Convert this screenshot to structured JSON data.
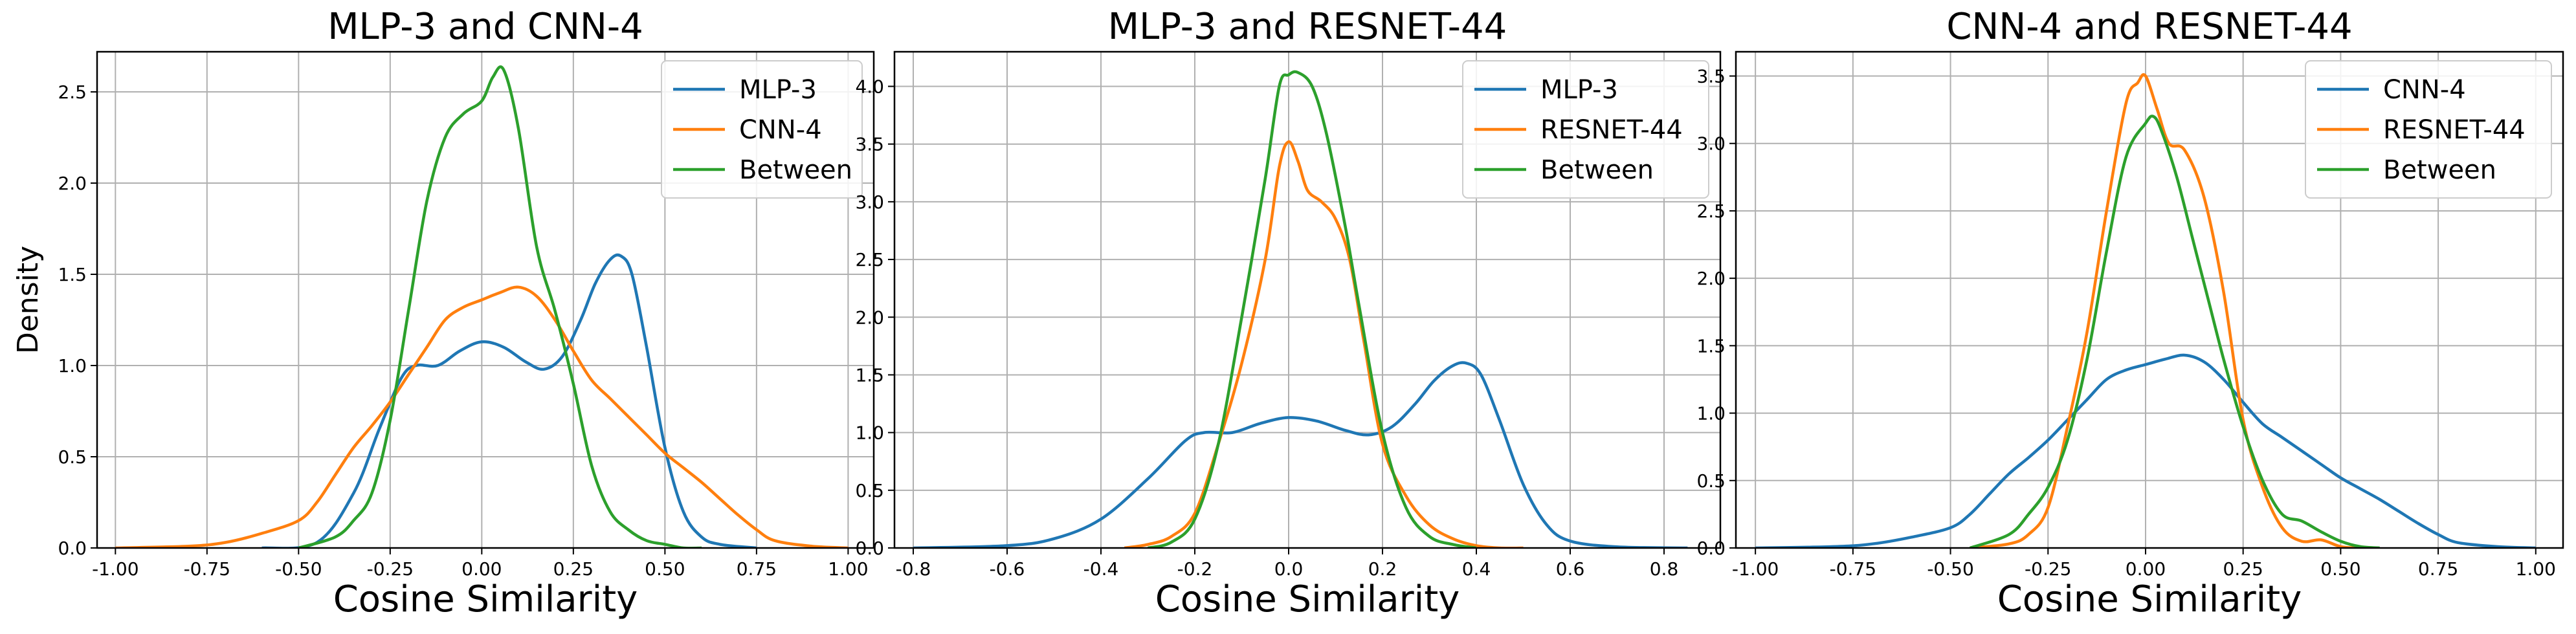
{
  "chart_data": [
    {
      "type": "line",
      "title": "MLP-3 and CNN-4",
      "xlabel": "Cosine Similarity",
      "ylabel": "Density",
      "xlim": [
        -1.05,
        1.07
      ],
      "ylim": [
        0,
        2.72
      ],
      "xticks": [
        "-1.00",
        "-0.75",
        "-0.50",
        "-0.25",
        "0.00",
        "0.25",
        "0.50",
        "0.75",
        "1.00"
      ],
      "yticks": [
        "0.0",
        "0.5",
        "1.0",
        "1.5",
        "2.0",
        "2.5"
      ],
      "grid": true,
      "legend": "top-right",
      "series": [
        {
          "name": "MLP-3",
          "color": "#1f77b4",
          "x": [
            -0.6,
            -0.45,
            -0.35,
            -0.28,
            -0.22,
            -0.18,
            -0.12,
            -0.06,
            0.0,
            0.06,
            0.12,
            0.17,
            0.22,
            0.27,
            0.31,
            0.35,
            0.38,
            0.41,
            0.45,
            0.5,
            0.55,
            0.6,
            0.65,
            0.75
          ],
          "y": [
            0.0,
            0.03,
            0.3,
            0.65,
            0.93,
            1.0,
            1.0,
            1.08,
            1.13,
            1.1,
            1.02,
            0.98,
            1.05,
            1.25,
            1.45,
            1.58,
            1.6,
            1.5,
            1.1,
            0.55,
            0.2,
            0.06,
            0.02,
            0.0
          ]
        },
        {
          "name": "CNN-4",
          "color": "#ff7f0e",
          "x": [
            -1.0,
            -0.8,
            -0.7,
            -0.6,
            -0.5,
            -0.45,
            -0.4,
            -0.35,
            -0.3,
            -0.25,
            -0.2,
            -0.15,
            -0.1,
            -0.05,
            0.0,
            0.05,
            0.1,
            0.15,
            0.2,
            0.25,
            0.3,
            0.35,
            0.4,
            0.45,
            0.5,
            0.55,
            0.6,
            0.65,
            0.7,
            0.75,
            0.8,
            0.9,
            1.0
          ],
          "y": [
            0.0,
            0.01,
            0.03,
            0.08,
            0.15,
            0.25,
            0.4,
            0.55,
            0.67,
            0.8,
            0.95,
            1.1,
            1.25,
            1.32,
            1.36,
            1.4,
            1.43,
            1.38,
            1.25,
            1.08,
            0.92,
            0.82,
            0.72,
            0.62,
            0.52,
            0.44,
            0.36,
            0.27,
            0.18,
            0.1,
            0.04,
            0.01,
            0.0
          ]
        },
        {
          "name": "Between",
          "color": "#2ca02c",
          "x": [
            -0.5,
            -0.4,
            -0.35,
            -0.3,
            -0.25,
            -0.2,
            -0.15,
            -0.1,
            -0.05,
            0.0,
            0.03,
            0.06,
            0.1,
            0.15,
            0.2,
            0.25,
            0.3,
            0.35,
            0.4,
            0.45,
            0.5,
            0.55,
            0.6
          ],
          "y": [
            0.0,
            0.06,
            0.15,
            0.3,
            0.7,
            1.3,
            1.9,
            2.25,
            2.38,
            2.45,
            2.58,
            2.62,
            2.3,
            1.65,
            1.3,
            0.9,
            0.45,
            0.2,
            0.1,
            0.04,
            0.02,
            0.0,
            0.0
          ]
        }
      ]
    },
    {
      "type": "line",
      "title": "MLP-3 and RESNET-44",
      "xlabel": "Cosine Similarity",
      "ylabel": "",
      "xlim": [
        -0.84,
        0.92
      ],
      "ylim": [
        0,
        4.3
      ],
      "xticks": [
        "-0.8",
        "-0.6",
        "-0.4",
        "-0.2",
        "0.0",
        "0.2",
        "0.4",
        "0.6",
        "0.8"
      ],
      "yticks": [
        "0.0",
        "0.5",
        "1.0",
        "1.5",
        "2.0",
        "2.5",
        "3.0",
        "3.5",
        "4.0"
      ],
      "grid": true,
      "legend": "top-right",
      "series": [
        {
          "name": "MLP-3",
          "color": "#1f77b4",
          "x": [
            -0.8,
            -0.6,
            -0.5,
            -0.4,
            -0.3,
            -0.22,
            -0.18,
            -0.12,
            -0.06,
            0.0,
            0.06,
            0.12,
            0.17,
            0.22,
            0.27,
            0.31,
            0.35,
            0.38,
            0.41,
            0.45,
            0.5,
            0.55,
            0.6,
            0.7,
            0.85
          ],
          "y": [
            0.0,
            0.02,
            0.08,
            0.25,
            0.6,
            0.93,
            1.0,
            1.0,
            1.08,
            1.13,
            1.1,
            1.02,
            0.98,
            1.05,
            1.25,
            1.45,
            1.58,
            1.6,
            1.5,
            1.1,
            0.55,
            0.2,
            0.06,
            0.01,
            0.0
          ]
        },
        {
          "name": "RESNET-44",
          "color": "#ff7f0e",
          "x": [
            -0.35,
            -0.3,
            -0.25,
            -0.2,
            -0.15,
            -0.1,
            -0.05,
            -0.02,
            0.0,
            0.02,
            0.04,
            0.07,
            0.1,
            0.13,
            0.16,
            0.2,
            0.25,
            0.3,
            0.35,
            0.4,
            0.45,
            0.5
          ],
          "y": [
            0.0,
            0.03,
            0.1,
            0.3,
            0.9,
            1.6,
            2.5,
            3.3,
            3.52,
            3.35,
            3.1,
            3.0,
            2.85,
            2.5,
            1.8,
            0.9,
            0.45,
            0.2,
            0.08,
            0.02,
            0.0,
            0.0
          ]
        },
        {
          "name": "Between",
          "color": "#2ca02c",
          "x": [
            -0.3,
            -0.25,
            -0.2,
            -0.15,
            -0.1,
            -0.05,
            -0.02,
            0.0,
            0.02,
            0.05,
            0.08,
            0.12,
            0.15,
            0.2,
            0.25,
            0.3,
            0.35,
            0.4
          ],
          "y": [
            0.0,
            0.05,
            0.25,
            0.9,
            2.0,
            3.2,
            4.0,
            4.1,
            4.12,
            4.0,
            3.6,
            2.8,
            2.1,
            1.0,
            0.35,
            0.1,
            0.03,
            0.0
          ]
        }
      ]
    },
    {
      "type": "line",
      "title": "CNN-4 and RESNET-44",
      "xlabel": "Cosine Similarity",
      "ylabel": "",
      "xlim": [
        -1.05,
        1.07
      ],
      "ylim": [
        0,
        3.68
      ],
      "xticks": [
        "-1.00",
        "-0.75",
        "-0.50",
        "-0.25",
        "0.00",
        "0.25",
        "0.50",
        "0.75",
        "1.00"
      ],
      "yticks": [
        "0.0",
        "0.5",
        "1.0",
        "1.5",
        "2.0",
        "2.5",
        "3.0",
        "3.5"
      ],
      "grid": true,
      "legend": "top-right",
      "series": [
        {
          "name": "CNN-4",
          "color": "#1f77b4",
          "x": [
            -1.0,
            -0.8,
            -0.7,
            -0.6,
            -0.5,
            -0.45,
            -0.4,
            -0.35,
            -0.3,
            -0.25,
            -0.2,
            -0.15,
            -0.1,
            -0.05,
            0.0,
            0.05,
            0.1,
            0.15,
            0.2,
            0.25,
            0.3,
            0.35,
            0.4,
            0.45,
            0.5,
            0.55,
            0.6,
            0.65,
            0.7,
            0.75,
            0.8,
            0.9,
            1.0
          ],
          "y": [
            0.0,
            0.01,
            0.03,
            0.08,
            0.15,
            0.25,
            0.4,
            0.55,
            0.67,
            0.8,
            0.95,
            1.1,
            1.25,
            1.32,
            1.36,
            1.4,
            1.43,
            1.38,
            1.25,
            1.08,
            0.92,
            0.82,
            0.72,
            0.62,
            0.52,
            0.44,
            0.36,
            0.27,
            0.18,
            0.1,
            0.04,
            0.01,
            0.0
          ]
        },
        {
          "name": "RESNET-44",
          "color": "#ff7f0e",
          "x": [
            -0.45,
            -0.35,
            -0.3,
            -0.25,
            -0.2,
            -0.15,
            -0.1,
            -0.05,
            -0.02,
            0.0,
            0.03,
            0.06,
            0.1,
            0.15,
            0.2,
            0.25,
            0.3,
            0.35,
            0.4,
            0.45,
            0.5,
            0.55
          ],
          "y": [
            0.0,
            0.03,
            0.1,
            0.3,
            0.9,
            1.6,
            2.5,
            3.3,
            3.45,
            3.5,
            3.25,
            3.0,
            2.95,
            2.6,
            1.9,
            0.95,
            0.45,
            0.15,
            0.05,
            0.06,
            0.01,
            0.0
          ]
        },
        {
          "name": "Between",
          "color": "#2ca02c",
          "x": [
            -0.45,
            -0.35,
            -0.3,
            -0.25,
            -0.2,
            -0.15,
            -0.1,
            -0.05,
            0.0,
            0.02,
            0.04,
            0.08,
            0.12,
            0.16,
            0.2,
            0.25,
            0.3,
            0.35,
            0.4,
            0.45,
            0.5,
            0.55,
            0.6
          ],
          "y": [
            0.0,
            0.1,
            0.25,
            0.45,
            0.8,
            1.4,
            2.2,
            2.9,
            3.15,
            3.2,
            3.1,
            2.75,
            2.3,
            1.85,
            1.4,
            0.9,
            0.5,
            0.25,
            0.2,
            0.12,
            0.05,
            0.01,
            0.0
          ]
        }
      ]
    }
  ]
}
